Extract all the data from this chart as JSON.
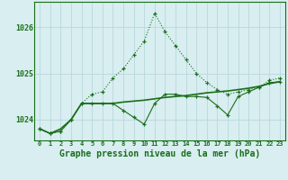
{
  "x": [
    0,
    1,
    2,
    3,
    4,
    5,
    6,
    7,
    8,
    9,
    10,
    11,
    12,
    13,
    14,
    15,
    16,
    17,
    18,
    19,
    20,
    21,
    22,
    23
  ],
  "series_dotted": [
    1023.8,
    1023.7,
    1023.75,
    1024.0,
    1024.35,
    1024.55,
    1024.6,
    1024.9,
    1025.1,
    1025.4,
    1025.7,
    1026.3,
    1025.9,
    1025.6,
    1025.3,
    1025.0,
    1024.8,
    1024.65,
    1024.55,
    1024.6,
    1024.65,
    1024.7,
    1024.85,
    1024.9
  ],
  "series_solid_flat": [
    1023.8,
    1023.7,
    1023.8,
    1024.0,
    1024.35,
    1024.35,
    1024.35,
    1024.35,
    1024.38,
    1024.4,
    1024.42,
    1024.45,
    1024.48,
    1024.5,
    1024.52,
    1024.55,
    1024.58,
    1024.6,
    1024.62,
    1024.65,
    1024.68,
    1024.72,
    1024.78,
    1024.82
  ],
  "series_dip": [
    1023.8,
    1023.7,
    1023.75,
    1024.0,
    1024.35,
    1024.35,
    1024.35,
    1024.35,
    1024.2,
    1024.05,
    1023.9,
    1024.35,
    1024.55,
    1024.55,
    1024.5,
    1024.5,
    1024.48,
    1024.3,
    1024.1,
    1024.5,
    1024.6,
    1024.7,
    1024.8,
    1024.82
  ],
  "background_color": "#d8eef0",
  "grid_color": "#b8d8dc",
  "line_color": "#1a6e1a",
  "ylabel_ticks": [
    1024,
    1025,
    1026
  ],
  "xlabel": "Graphe pression niveau de la mer (hPa)",
  "ylim_min": 1023.55,
  "ylim_max": 1026.55
}
